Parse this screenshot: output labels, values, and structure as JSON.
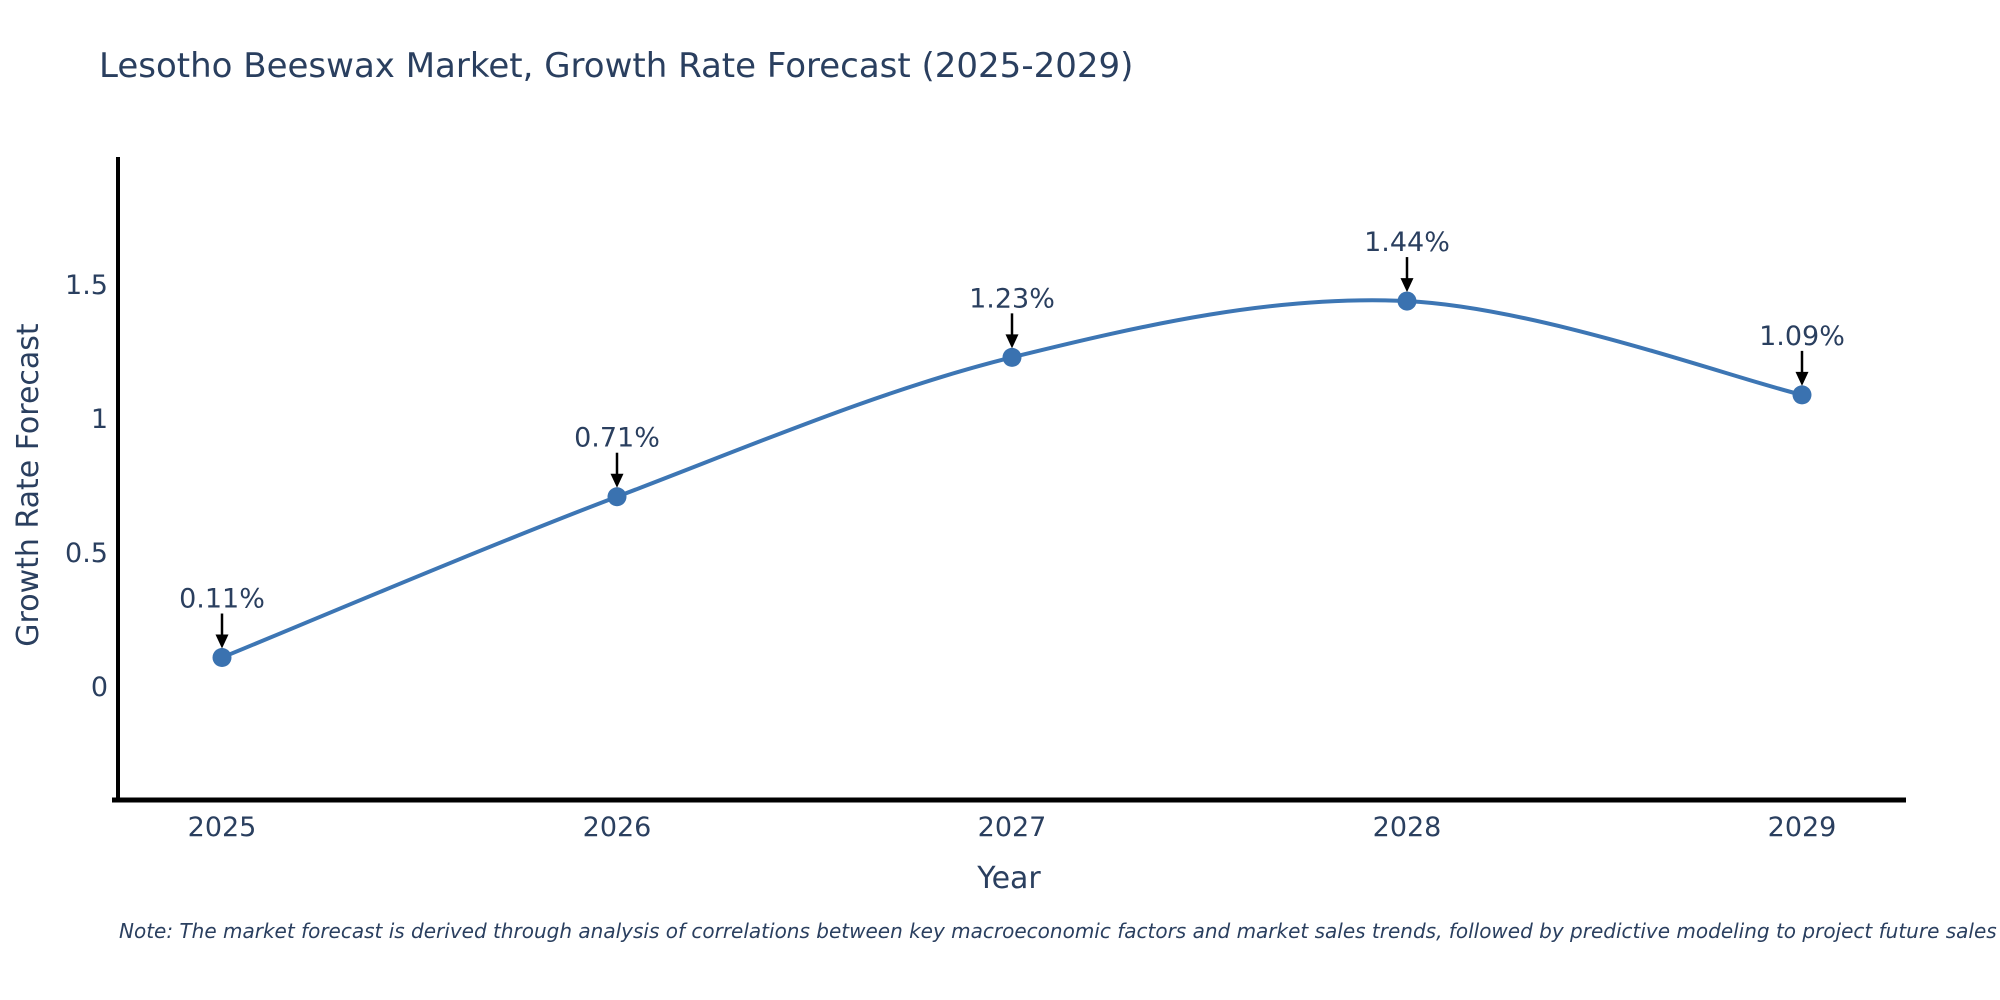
{
  "note": "Note: The market forecast is derived through analysis of correlations between key macroeconomic factors and market sales trends, followed by predictive modeling to project future sales",
  "chart_data": {
    "type": "line",
    "title": "Lesotho Beeswax Market, Growth Rate Forecast (2025-2029)",
    "xlabel": "Year",
    "ylabel": "Growth Rate Forecast",
    "categories": [
      "2025",
      "2026",
      "2027",
      "2028",
      "2029"
    ],
    "values": [
      0.11,
      0.71,
      1.23,
      1.44,
      1.09
    ],
    "point_labels": [
      "0.11%",
      "0.71%",
      "1.23%",
      "1.44%",
      "1.09%"
    ],
    "ytick_values": [
      0,
      0.5,
      1,
      1.5
    ],
    "ytick_labels": [
      "0",
      "0.5",
      "1",
      "1.5"
    ],
    "ylim": [
      -0.42,
      1.95
    ],
    "line_shape": "spline",
    "grid": false,
    "legend": "none",
    "marker_size": 19,
    "colors": {
      "line": "#3d76b4",
      "marker": "#3a72b0",
      "axis": "#000000",
      "arrow": "#000000",
      "text": "#2a3f5f",
      "background": "#ffffff"
    }
  }
}
